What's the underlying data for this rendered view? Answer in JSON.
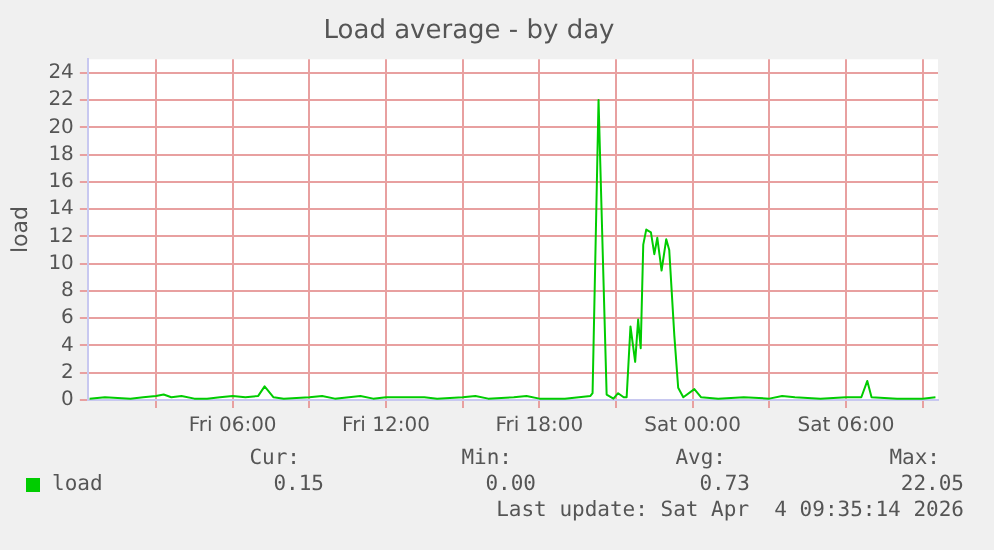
{
  "chart_data": {
    "type": "line",
    "title": "Load average - by day",
    "ylabel": "load",
    "xlim": [
      "2026-04-03T00:20",
      "2026-04-04T09:36"
    ],
    "ylim": [
      0,
      25
    ],
    "xticks": [
      {
        "value": "2026-04-03T03:00",
        "label": null
      },
      {
        "value": "2026-04-03T06:00",
        "label": "Fri 06:00"
      },
      {
        "value": "2026-04-03T09:00",
        "label": null
      },
      {
        "value": "2026-04-03T12:00",
        "label": "Fri 12:00"
      },
      {
        "value": "2026-04-03T15:00",
        "label": null
      },
      {
        "value": "2026-04-03T18:00",
        "label": "Fri 18:00"
      },
      {
        "value": "2026-04-03T21:00",
        "label": null
      },
      {
        "value": "2026-04-04T00:00",
        "label": "Sat 00:00"
      },
      {
        "value": "2026-04-04T03:00",
        "label": null
      },
      {
        "value": "2026-04-04T06:00",
        "label": "Sat 06:00"
      },
      {
        "value": "2026-04-04T09:00",
        "label": null
      }
    ],
    "yticks": [
      0,
      2,
      4,
      6,
      8,
      10,
      12,
      14,
      16,
      18,
      20,
      22,
      24
    ],
    "grid": true,
    "legend": "bottom",
    "marker": "none",
    "line_style": "solid",
    "annotations": [
      "Cur:",
      "0.15",
      "Min:",
      "0.00",
      "Avg:",
      "0.73",
      "Max:",
      "22.05",
      "Last update: Sat Apr  4 09:35:14 2026"
    ],
    "series": [
      {
        "name": "load",
        "color": "#00cc00",
        "x": [
          "2026-04-03T00:24",
          "2026-04-03T01:00",
          "2026-04-03T02:00",
          "2026-04-03T02:30",
          "2026-04-03T03:00",
          "2026-04-03T03:18",
          "2026-04-03T03:36",
          "2026-04-03T04:00",
          "2026-04-03T04:30",
          "2026-04-03T05:00",
          "2026-04-03T05:30",
          "2026-04-03T06:00",
          "2026-04-03T06:30",
          "2026-04-03T07:00",
          "2026-04-03T07:15",
          "2026-04-03T07:36",
          "2026-04-03T08:00",
          "2026-04-03T09:00",
          "2026-04-03T09:30",
          "2026-04-03T10:00",
          "2026-04-03T11:00",
          "2026-04-03T11:30",
          "2026-04-03T12:00",
          "2026-04-03T13:00",
          "2026-04-03T13:30",
          "2026-04-03T14:00",
          "2026-04-03T15:00",
          "2026-04-03T15:30",
          "2026-04-03T16:00",
          "2026-04-03T17:00",
          "2026-04-03T17:30",
          "2026-04-03T18:00",
          "2026-04-03T19:00",
          "2026-04-03T20:00",
          "2026-04-03T20:05",
          "2026-04-03T20:19",
          "2026-04-03T20:38",
          "2026-04-03T20:54",
          "2026-04-03T21:05",
          "2026-04-03T21:18",
          "2026-04-03T21:25",
          "2026-04-03T21:34",
          "2026-04-03T21:45",
          "2026-04-03T21:52",
          "2026-04-03T21:58",
          "2026-04-03T22:04",
          "2026-04-03T22:11",
          "2026-04-03T22:22",
          "2026-04-03T22:30",
          "2026-04-03T22:37",
          "2026-04-03T22:47",
          "2026-04-03T22:58",
          "2026-04-03T23:05",
          "2026-04-03T23:17",
          "2026-04-03T23:26",
          "2026-04-03T23:38",
          "2026-04-04T00:04",
          "2026-04-04T00:20",
          "2026-04-04T01:00",
          "2026-04-04T02:00",
          "2026-04-04T03:00",
          "2026-04-04T03:30",
          "2026-04-04T04:00",
          "2026-04-04T05:00",
          "2026-04-04T06:00",
          "2026-04-04T06:36",
          "2026-04-04T06:50",
          "2026-04-04T07:00",
          "2026-04-04T08:00",
          "2026-04-04T09:00",
          "2026-04-04T09:30"
        ],
        "values": [
          0.1,
          0.2,
          0.1,
          0.2,
          0.3,
          0.4,
          0.2,
          0.3,
          0.1,
          0.1,
          0.2,
          0.3,
          0.2,
          0.3,
          1.0,
          0.2,
          0.1,
          0.2,
          0.3,
          0.1,
          0.3,
          0.1,
          0.2,
          0.2,
          0.2,
          0.1,
          0.2,
          0.3,
          0.1,
          0.2,
          0.3,
          0.1,
          0.1,
          0.3,
          0.5,
          22.0,
          0.4,
          0.1,
          0.5,
          0.2,
          0.2,
          5.4,
          2.8,
          5.9,
          3.8,
          11.4,
          12.5,
          12.3,
          10.7,
          11.9,
          9.5,
          11.8,
          11.0,
          4.7,
          0.9,
          0.2,
          0.8,
          0.2,
          0.1,
          0.2,
          0.1,
          0.3,
          0.2,
          0.1,
          0.2,
          0.2,
          1.4,
          0.2,
          0.1,
          0.1,
          0.2
        ]
      }
    ]
  }
}
